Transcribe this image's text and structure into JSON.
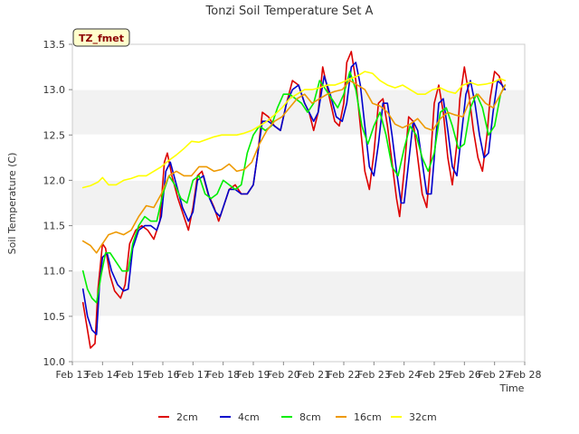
{
  "chart_data": {
    "type": "line",
    "title": "Tonzi Soil Temperature Set A",
    "xlabel": "Time",
    "ylabel": "Soil Temperature (C)",
    "ylim": [
      10.0,
      13.5
    ],
    "xlim": [
      13,
      28
    ],
    "yticks": [
      "10.0",
      "10.5",
      "11.0",
      "11.5",
      "12.0",
      "12.5",
      "13.0",
      "13.5"
    ],
    "xticks": [
      "Feb 13",
      "Feb 14",
      "Feb 15",
      "Feb 16",
      "Feb 17",
      "Feb 18",
      "Feb 19",
      "Feb 20",
      "Feb 21",
      "Feb 22",
      "Feb 23",
      "Feb 24",
      "Feb 25",
      "Feb 26",
      "Feb 27",
      "Feb 28"
    ],
    "badge": "TZ_fmet",
    "colors": {
      "band": "#f2f2f2",
      "grid": "#ffffff",
      "frame": "#cccccc",
      "badge_bg": "#ffffcc"
    },
    "series": [
      {
        "name": "2cm",
        "color": "#dd0000",
        "x": [
          13.35,
          13.5,
          13.6,
          13.75,
          13.85,
          14.0,
          14.1,
          14.25,
          14.4,
          14.6,
          14.75,
          14.9,
          15.1,
          15.3,
          15.5,
          15.7,
          15.9,
          16.05,
          16.15,
          16.3,
          16.5,
          16.7,
          16.85,
          17.0,
          17.15,
          17.3,
          17.5,
          17.7,
          17.85,
          18.0,
          18.2,
          18.4,
          18.6,
          18.8,
          19.0,
          19.15,
          19.3,
          19.5,
          19.7,
          19.9,
          20.1,
          20.3,
          20.5,
          20.7,
          20.85,
          21.0,
          21.15,
          21.3,
          21.5,
          21.7,
          21.85,
          22.0,
          22.1,
          22.25,
          22.4,
          22.55,
          22.7,
          22.85,
          23.0,
          23.15,
          23.3,
          23.45,
          23.6,
          23.75,
          23.85,
          24.0,
          24.15,
          24.3,
          24.45,
          24.6,
          24.75,
          24.85,
          25.0,
          25.15,
          25.3,
          25.45,
          25.6,
          25.75,
          25.85,
          26.0,
          26.15,
          26.3,
          26.45,
          26.6,
          26.75,
          26.85,
          27.0,
          27.15,
          27.3
        ],
        "values": [
          10.65,
          10.35,
          10.15,
          10.2,
          10.8,
          11.3,
          11.25,
          10.95,
          10.78,
          10.7,
          10.85,
          11.3,
          11.45,
          11.5,
          11.45,
          11.35,
          11.55,
          12.2,
          12.3,
          12.05,
          11.8,
          11.6,
          11.45,
          11.7,
          12.05,
          12.1,
          11.85,
          11.7,
          11.55,
          11.7,
          11.9,
          11.95,
          11.85,
          11.85,
          11.95,
          12.3,
          12.75,
          12.7,
          12.6,
          12.55,
          12.85,
          13.1,
          13.05,
          12.85,
          12.75,
          12.55,
          12.75,
          13.25,
          12.95,
          12.65,
          12.6,
          12.85,
          13.3,
          13.42,
          13.1,
          12.6,
          12.1,
          11.9,
          12.3,
          12.85,
          12.9,
          12.6,
          12.2,
          11.8,
          11.6,
          12.1,
          12.7,
          12.65,
          12.25,
          11.85,
          11.7,
          12.1,
          12.85,
          13.05,
          12.75,
          12.25,
          11.95,
          12.4,
          12.9,
          13.25,
          12.95,
          12.55,
          12.25,
          12.1,
          12.5,
          12.9,
          13.2,
          13.15,
          13.0
        ]
      },
      {
        "name": "4cm",
        "color": "#0000cc",
        "x": [
          13.35,
          13.5,
          13.65,
          13.8,
          13.9,
          14.0,
          14.15,
          14.3,
          14.5,
          14.7,
          14.85,
          15.0,
          15.2,
          15.4,
          15.6,
          15.8,
          15.95,
          16.1,
          16.25,
          16.45,
          16.65,
          16.85,
          17.0,
          17.15,
          17.35,
          17.55,
          17.75,
          17.9,
          18.05,
          18.2,
          18.4,
          18.6,
          18.8,
          19.0,
          19.15,
          19.3,
          19.5,
          19.7,
          19.9,
          20.1,
          20.3,
          20.5,
          20.7,
          20.85,
          21.0,
          21.15,
          21.35,
          21.55,
          21.75,
          21.95,
          22.1,
          22.25,
          22.4,
          22.55,
          22.7,
          22.85,
          23.0,
          23.15,
          23.3,
          23.45,
          23.6,
          23.75,
          23.9,
          24.0,
          24.15,
          24.3,
          24.45,
          24.6,
          24.75,
          24.9,
          25.0,
          25.15,
          25.3,
          25.45,
          25.6,
          25.75,
          25.9,
          26.05,
          26.2,
          26.35,
          26.5,
          26.65,
          26.8,
          26.95,
          27.1,
          27.25,
          27.35
        ],
        "values": [
          10.8,
          10.5,
          10.35,
          10.3,
          10.85,
          11.15,
          11.2,
          11.0,
          10.85,
          10.78,
          10.8,
          11.25,
          11.45,
          11.5,
          11.5,
          11.45,
          11.6,
          12.1,
          12.2,
          11.95,
          11.7,
          11.55,
          11.65,
          12.0,
          12.05,
          11.8,
          11.65,
          11.6,
          11.75,
          11.9,
          11.9,
          11.85,
          11.85,
          11.95,
          12.3,
          12.65,
          12.65,
          12.6,
          12.55,
          12.85,
          13.0,
          13.05,
          12.85,
          12.75,
          12.65,
          12.75,
          13.15,
          12.95,
          12.7,
          12.65,
          12.85,
          13.25,
          13.3,
          13.05,
          12.6,
          12.15,
          12.05,
          12.4,
          12.85,
          12.85,
          12.5,
          12.1,
          11.75,
          11.75,
          12.2,
          12.65,
          12.55,
          12.2,
          11.85,
          11.85,
          12.25,
          12.85,
          12.9,
          12.55,
          12.15,
          12.05,
          12.5,
          12.95,
          13.1,
          12.85,
          12.5,
          12.25,
          12.3,
          12.75,
          13.1,
          13.05,
          13.0
        ]
      },
      {
        "name": "8cm",
        "color": "#00ee00",
        "x": [
          13.35,
          13.5,
          13.65,
          13.8,
          13.95,
          14.1,
          14.25,
          14.45,
          14.65,
          14.85,
          15.0,
          15.2,
          15.4,
          15.6,
          15.8,
          16.0,
          16.2,
          16.4,
          16.6,
          16.8,
          17.0,
          17.2,
          17.4,
          17.6,
          17.8,
          18.0,
          18.2,
          18.4,
          18.6,
          18.8,
          19.0,
          19.2,
          19.4,
          19.6,
          19.8,
          20.0,
          20.2,
          20.4,
          20.6,
          20.8,
          21.0,
          21.2,
          21.4,
          21.6,
          21.8,
          22.0,
          22.2,
          22.4,
          22.6,
          22.8,
          23.0,
          23.2,
          23.4,
          23.6,
          23.8,
          24.0,
          24.2,
          24.4,
          24.6,
          24.8,
          25.0,
          25.2,
          25.4,
          25.6,
          25.8,
          26.0,
          26.2,
          26.4,
          26.6,
          26.8,
          27.0,
          27.2,
          27.35
        ],
        "values": [
          11.0,
          10.8,
          10.7,
          10.65,
          10.95,
          11.2,
          11.2,
          11.1,
          11.0,
          11.0,
          11.3,
          11.5,
          11.6,
          11.55,
          11.55,
          11.85,
          12.05,
          11.95,
          11.8,
          11.75,
          12.0,
          12.05,
          11.85,
          11.8,
          11.85,
          12.0,
          11.95,
          11.9,
          11.95,
          12.3,
          12.5,
          12.6,
          12.55,
          12.6,
          12.8,
          12.95,
          12.95,
          12.9,
          12.85,
          12.75,
          12.85,
          13.1,
          13.0,
          12.9,
          12.8,
          12.95,
          13.2,
          13.0,
          12.6,
          12.4,
          12.6,
          12.75,
          12.5,
          12.15,
          12.05,
          12.35,
          12.6,
          12.5,
          12.25,
          12.1,
          12.3,
          12.75,
          12.8,
          12.6,
          12.35,
          12.4,
          12.8,
          12.95,
          12.8,
          12.5,
          12.6,
          12.95,
          13.05
        ]
      },
      {
        "name": "16cm",
        "color": "#ee9900",
        "x": [
          13.35,
          13.6,
          13.8,
          14.0,
          14.2,
          14.45,
          14.7,
          14.95,
          15.2,
          15.45,
          15.7,
          15.95,
          16.2,
          16.45,
          16.7,
          16.95,
          17.2,
          17.45,
          17.7,
          17.95,
          18.2,
          18.45,
          18.7,
          18.95,
          19.2,
          19.45,
          19.7,
          19.95,
          20.2,
          20.45,
          20.7,
          20.95,
          21.2,
          21.45,
          21.7,
          21.95,
          22.2,
          22.45,
          22.7,
          22.95,
          23.2,
          23.45,
          23.7,
          23.95,
          24.2,
          24.45,
          24.7,
          24.95,
          25.2,
          25.45,
          25.7,
          25.95,
          26.2,
          26.45,
          26.7,
          26.95,
          27.2,
          27.35
        ],
        "values": [
          11.33,
          11.28,
          11.2,
          11.3,
          11.4,
          11.43,
          11.4,
          11.45,
          11.6,
          11.72,
          11.7,
          11.85,
          12.05,
          12.1,
          12.05,
          12.05,
          12.15,
          12.15,
          12.1,
          12.12,
          12.18,
          12.1,
          12.12,
          12.2,
          12.4,
          12.55,
          12.65,
          12.7,
          12.8,
          12.9,
          12.95,
          12.85,
          12.9,
          12.95,
          12.98,
          13.0,
          13.1,
          13.05,
          13.0,
          12.85,
          12.82,
          12.75,
          12.62,
          12.58,
          12.62,
          12.68,
          12.58,
          12.55,
          12.68,
          12.75,
          12.72,
          12.7,
          12.9,
          12.95,
          12.85,
          12.8,
          12.95,
          13.05
        ]
      },
      {
        "name": "32cm",
        "color": "#ffff00",
        "x": [
          13.35,
          13.6,
          13.85,
          14.0,
          14.2,
          14.45,
          14.7,
          14.95,
          15.2,
          15.45,
          15.7,
          15.95,
          16.2,
          16.45,
          16.7,
          16.95,
          17.2,
          17.45,
          17.7,
          17.95,
          18.2,
          18.45,
          18.7,
          18.95,
          19.2,
          19.45,
          19.7,
          19.95,
          20.2,
          20.45,
          20.7,
          20.95,
          21.2,
          21.45,
          21.7,
          21.95,
          22.2,
          22.45,
          22.7,
          22.95,
          23.2,
          23.45,
          23.7,
          23.95,
          24.2,
          24.45,
          24.7,
          24.95,
          25.2,
          25.45,
          25.7,
          25.95,
          26.2,
          26.45,
          26.7,
          26.95,
          27.2,
          27.35
        ],
        "values": [
          11.92,
          11.94,
          11.98,
          12.03,
          11.95,
          11.95,
          12.0,
          12.02,
          12.05,
          12.05,
          12.1,
          12.15,
          12.22,
          12.28,
          12.35,
          12.43,
          12.42,
          12.45,
          12.48,
          12.5,
          12.5,
          12.5,
          12.52,
          12.55,
          12.6,
          12.65,
          12.72,
          12.8,
          12.9,
          12.95,
          13.0,
          13.0,
          13.02,
          13.05,
          13.05,
          13.08,
          13.12,
          13.15,
          13.2,
          13.18,
          13.1,
          13.05,
          13.02,
          13.05,
          13.0,
          12.95,
          12.95,
          13.0,
          13.02,
          12.98,
          12.96,
          13.05,
          13.08,
          13.05,
          13.06,
          13.08,
          13.12,
          13.1
        ]
      }
    ]
  }
}
